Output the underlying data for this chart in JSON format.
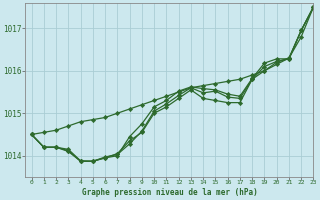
{
  "background_color": "#cce8ee",
  "grid_color": "#aacdd4",
  "line_color": "#2d6a2d",
  "marker_color": "#2d6a2d",
  "xlabel": "Graphe pression niveau de la mer (hPa)",
  "ylim": [
    1013.5,
    1017.6
  ],
  "xlim": [
    -0.5,
    23
  ],
  "yticks": [
    1014,
    1015,
    1016,
    1017
  ],
  "xticks": [
    0,
    1,
    2,
    3,
    4,
    5,
    6,
    7,
    8,
    9,
    10,
    11,
    12,
    13,
    14,
    15,
    16,
    17,
    18,
    19,
    20,
    21,
    22,
    23
  ],
  "series": {
    "straight": [
      1014.5,
      1014.55,
      1014.6,
      1014.7,
      1014.8,
      1014.85,
      1014.9,
      1015.0,
      1015.1,
      1015.2,
      1015.3,
      1015.4,
      1015.5,
      1015.6,
      1015.65,
      1015.7,
      1015.75,
      1015.8,
      1015.9,
      1016.0,
      1016.15,
      1016.3,
      1016.8,
      1017.5
    ],
    "line1": [
      1014.5,
      1014.2,
      1014.2,
      1014.15,
      1013.88,
      1013.87,
      1013.95,
      1014.05,
      1014.35,
      1014.55,
      1015.0,
      1015.15,
      1015.35,
      1015.55,
      1015.35,
      1015.3,
      1015.25,
      1015.25,
      1015.8,
      1016.0,
      1016.2,
      1016.3,
      1016.95,
      1017.5
    ],
    "line2": [
      1014.5,
      1014.2,
      1014.2,
      1014.1,
      1013.87,
      1013.87,
      1013.95,
      1014.0,
      1014.45,
      1014.75,
      1015.15,
      1015.3,
      1015.52,
      1015.62,
      1015.58,
      1015.55,
      1015.45,
      1015.4,
      1015.82,
      1016.18,
      1016.28,
      1016.28,
      1016.95,
      1017.5
    ],
    "line3": [
      1014.5,
      1014.2,
      1014.2,
      1014.12,
      1013.87,
      1013.87,
      1013.97,
      1014.03,
      1014.28,
      1014.58,
      1015.05,
      1015.22,
      1015.42,
      1015.6,
      1015.48,
      1015.52,
      1015.38,
      1015.35,
      1015.8,
      1016.1,
      1016.22,
      1016.28,
      1016.95,
      1017.5
    ]
  }
}
